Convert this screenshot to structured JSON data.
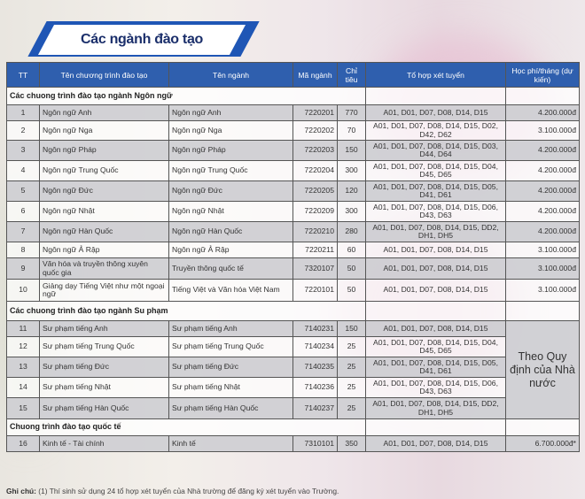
{
  "title": "Các ngành đào tạo",
  "colors": {
    "header": "#2f5fae",
    "banner": "#1f56b5",
    "title": "#1b2f6b"
  },
  "columns": [
    "TT",
    "Tên chương trình đào tạo",
    "Tên ngành",
    "Mã ngành",
    "Chỉ tiêu",
    "Tổ hợp xét tuyển",
    "Học phí/tháng (dự kiến)"
  ],
  "sections": [
    {
      "label": "Các chuong trình đào tạo ngành Ngôn ngữ",
      "rows": [
        [
          "1",
          "Ngôn ngữ Anh",
          "Ngôn ngữ Anh",
          "7220201",
          "770",
          "A01, D01, D07, D08, D14, D15",
          "4.200.000đ"
        ],
        [
          "2",
          "Ngôn ngữ Nga",
          "Ngôn ngữ Nga",
          "7220202",
          "70",
          "A01, D01, D07, D08, D14, D15, D02, D42, D62",
          "3.100.000đ"
        ],
        [
          "3",
          "Ngôn ngữ Pháp",
          "Ngôn ngữ Pháp",
          "7220203",
          "150",
          "A01, D01, D07, D08, D14, D15, D03, D44, D64",
          "4.200.000đ"
        ],
        [
          "4",
          "Ngôn ngữ Trung Quốc",
          "Ngôn ngữ Trung Quốc",
          "7220204",
          "300",
          "A01, D01, D07, D08, D14, D15, D04, D45, D65",
          "4.200.000đ"
        ],
        [
          "5",
          "Ngôn ngữ Đức",
          "Ngôn ngữ Đức",
          "7220205",
          "120",
          "A01, D01, D07, D08, D14, D15, D05, D41, D61",
          "4.200.000đ"
        ],
        [
          "6",
          "Ngôn ngữ Nhật",
          "Ngôn ngữ Nhật",
          "7220209",
          "300",
          "A01, D01, D07, D08, D14, D15, D06, D43, D63",
          "4.200.000đ"
        ],
        [
          "7",
          "Ngôn ngữ Hàn Quốc",
          "Ngôn ngữ Hàn Quốc",
          "7220210",
          "280",
          "A01, D01, D07, D08, D14, D15, DD2, DH1, DH5",
          "4.200.000đ"
        ],
        [
          "8",
          "Ngôn ngữ Ả Rập",
          "Ngôn ngữ Ả Rập",
          "7220211",
          "60",
          "A01, D01, D07, D08, D14, D15",
          "3.100.000đ"
        ],
        [
          "9",
          "Văn hóa và truyền thông xuyên quốc gia",
          "Truyền thông quốc tế",
          "7320107",
          "50",
          "A01, D01, D07, D08, D14, D15",
          "3.100.000đ"
        ],
        [
          "10",
          "Giảng dạy Tiếng Việt như một ngoại ngữ",
          "Tiếng Việt và Văn hóa Việt Nam",
          "7220101",
          "50",
          "A01, D01, D07, D08, D14, D15",
          "3.100.000đ"
        ]
      ]
    },
    {
      "label": "Các chuong trình đào tạo ngành Su phạm",
      "merged_fee": "Theo Quy định của Nhà nước",
      "rows": [
        [
          "11",
          "Sư phạm tiếng Anh",
          "Sư phạm tiếng Anh",
          "7140231",
          "150",
          "A01, D01, D07, D08, D14, D15"
        ],
        [
          "12",
          "Sư phạm tiếng Trung Quốc",
          "Sư phạm tiếng Trung Quốc",
          "7140234",
          "25",
          "A01, D01, D07, D08, D14, D15, D04, D45, D65"
        ],
        [
          "13",
          "Sư phạm tiếng Đức",
          "Sư phạm tiếng Đức",
          "7140235",
          "25",
          "A01, D01, D07, D08, D14, D15, D05, D41, D61"
        ],
        [
          "14",
          "Sư phạm tiếng Nhật",
          "Sư phạm tiếng Nhật",
          "7140236",
          "25",
          "A01, D01, D07, D08, D14, D15, D06, D43, D63"
        ],
        [
          "15",
          "Sư phạm tiếng Hàn Quốc",
          "Sư phạm tiếng Hàn Quốc",
          "7140237",
          "25",
          "A01, D01, D07, D08, D14, D15, DD2, DH1, DH5"
        ]
      ]
    },
    {
      "label": "Chuong trình đào tạo quốc tế",
      "rows": [
        [
          "16",
          "Kinh tế - Tài chính",
          "Kinh tế",
          "7310101",
          "350",
          "A01, D01, D07, D08, D14, D15",
          "6.700.000đ*"
        ]
      ]
    }
  ],
  "note": {
    "label": "Ghi chú:",
    "text": " (1) Thí sinh sử dụng 24 tổ hợp xét tuyển của Nhà trường để đăng ký xét tuyển vào Trường."
  }
}
